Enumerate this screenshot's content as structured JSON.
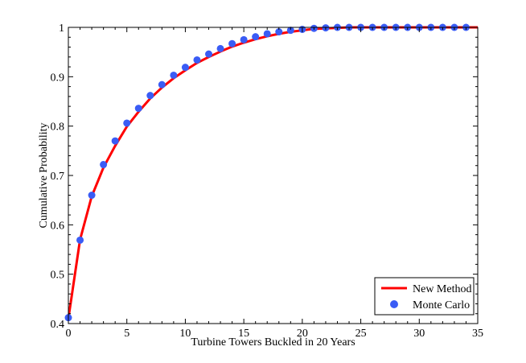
{
  "chart_data": {
    "type": "line",
    "title": "",
    "xlabel": "Turbine Towers Buckled in 20 Years",
    "ylabel": "Cumulative Probability",
    "xlim": [
      0,
      35
    ],
    "ylim": [
      0.4,
      1.0
    ],
    "xticks": [
      0,
      5,
      10,
      15,
      20,
      25,
      30,
      35
    ],
    "xtick_labels": [
      "0",
      "5",
      "10",
      "15",
      "20",
      "25",
      "30",
      "35"
    ],
    "yticks": [
      0.4,
      0.5,
      0.6,
      0.7,
      0.8,
      0.9,
      1.0
    ],
    "ytick_labels": [
      "0.4",
      "0.5",
      "0.6",
      "0.7",
      "0.8",
      "0.9",
      "1"
    ],
    "grid": false,
    "legend_position": "bottom-right",
    "series": [
      {
        "name": "New Method",
        "style": "line",
        "color": "#ff0000",
        "x": [
          0,
          1,
          2,
          3,
          4,
          5,
          6,
          7,
          8,
          9,
          10,
          11,
          12,
          13,
          14,
          15,
          16,
          17,
          18,
          19,
          20,
          21,
          22,
          23,
          24,
          25,
          26,
          27,
          28,
          29,
          30,
          31,
          32,
          33,
          34,
          35
        ],
        "values": [
          0.41,
          0.57,
          0.658,
          0.716,
          0.76,
          0.799,
          0.829,
          0.856,
          0.878,
          0.897,
          0.913,
          0.928,
          0.94,
          0.951,
          0.961,
          0.969,
          0.976,
          0.982,
          0.987,
          0.991,
          0.994,
          0.997,
          0.998,
          0.999,
          1.0,
          1.0,
          1.0,
          1.0,
          1.0,
          1.0,
          1.0,
          1.0,
          1.0,
          1.0,
          1.0,
          1.0
        ]
      },
      {
        "name": "Monte Carlo",
        "style": "scatter",
        "color": "#3a5cf5",
        "x": [
          0,
          1,
          2,
          3,
          4,
          5,
          6,
          7,
          8,
          9,
          10,
          11,
          12,
          13,
          14,
          15,
          16,
          17,
          18,
          19,
          20,
          21,
          22,
          23,
          24,
          25,
          26,
          27,
          28,
          29,
          30,
          31,
          32,
          33,
          34
        ],
        "values": [
          0.412,
          0.569,
          0.66,
          0.722,
          0.77,
          0.806,
          0.836,
          0.862,
          0.884,
          0.903,
          0.919,
          0.934,
          0.946,
          0.957,
          0.967,
          0.975,
          0.981,
          0.987,
          0.991,
          0.994,
          0.996,
          0.998,
          0.999,
          1.0,
          1.0,
          1.0,
          1.0,
          1.0,
          1.0,
          1.0,
          1.0,
          1.0,
          1.0,
          1.0,
          1.0
        ]
      }
    ]
  }
}
